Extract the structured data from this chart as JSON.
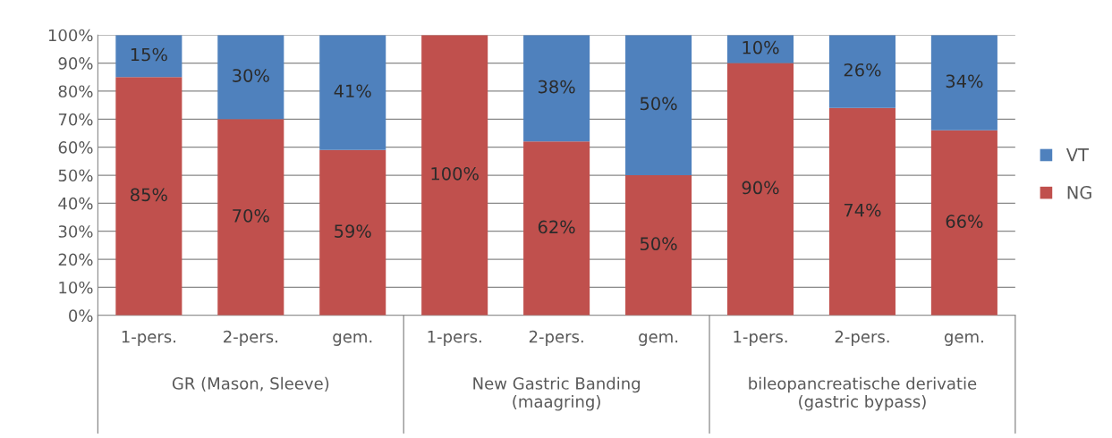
{
  "chart_data": {
    "type": "bar",
    "stacked": true,
    "categories": [
      "1-pers.",
      "2-pers.",
      "gem.",
      "1-pers.",
      "2-pers.",
      "gem.",
      "1-pers.",
      "2-pers.",
      "gem."
    ],
    "annotations": [
      "GR (Mason, Sleeve)",
      "New Gastric Banding\n(maagring)",
      "bileopancreatische derivatie\n(gastric bypass)"
    ],
    "series": [
      {
        "name": "NG",
        "color": "#c0504d",
        "values": [
          85,
          70,
          59,
          100,
          62,
          50,
          90,
          74,
          66
        ],
        "value_labels": [
          "85%",
          "70%",
          "59%",
          "100%",
          "62%",
          "50%",
          "90%",
          "74%",
          "66%"
        ]
      },
      {
        "name": "VT",
        "color": "#4f81bd",
        "values": [
          15,
          30,
          41,
          0,
          38,
          50,
          10,
          26,
          34
        ],
        "value_labels": [
          "15%",
          "30%",
          "41%",
          null,
          "38%",
          "50%",
          "10%",
          "26%",
          "34%"
        ]
      }
    ],
    "ylim": [
      0,
      100
    ],
    "yticks": [
      {
        "value": 0,
        "label": "0%"
      },
      {
        "value": 10,
        "label": "10%"
      },
      {
        "value": 20,
        "label": "20%"
      },
      {
        "value": 30,
        "label": "30%"
      },
      {
        "value": 40,
        "label": "40%"
      },
      {
        "value": 50,
        "label": "50%"
      },
      {
        "value": 60,
        "label": "60%"
      },
      {
        "value": 70,
        "label": "70%"
      },
      {
        "value": 80,
        "label": "80%"
      },
      {
        "value": 90,
        "label": "90%"
      },
      {
        "value": 100,
        "label": "100%"
      }
    ],
    "grid": "y",
    "legend": "right"
  }
}
